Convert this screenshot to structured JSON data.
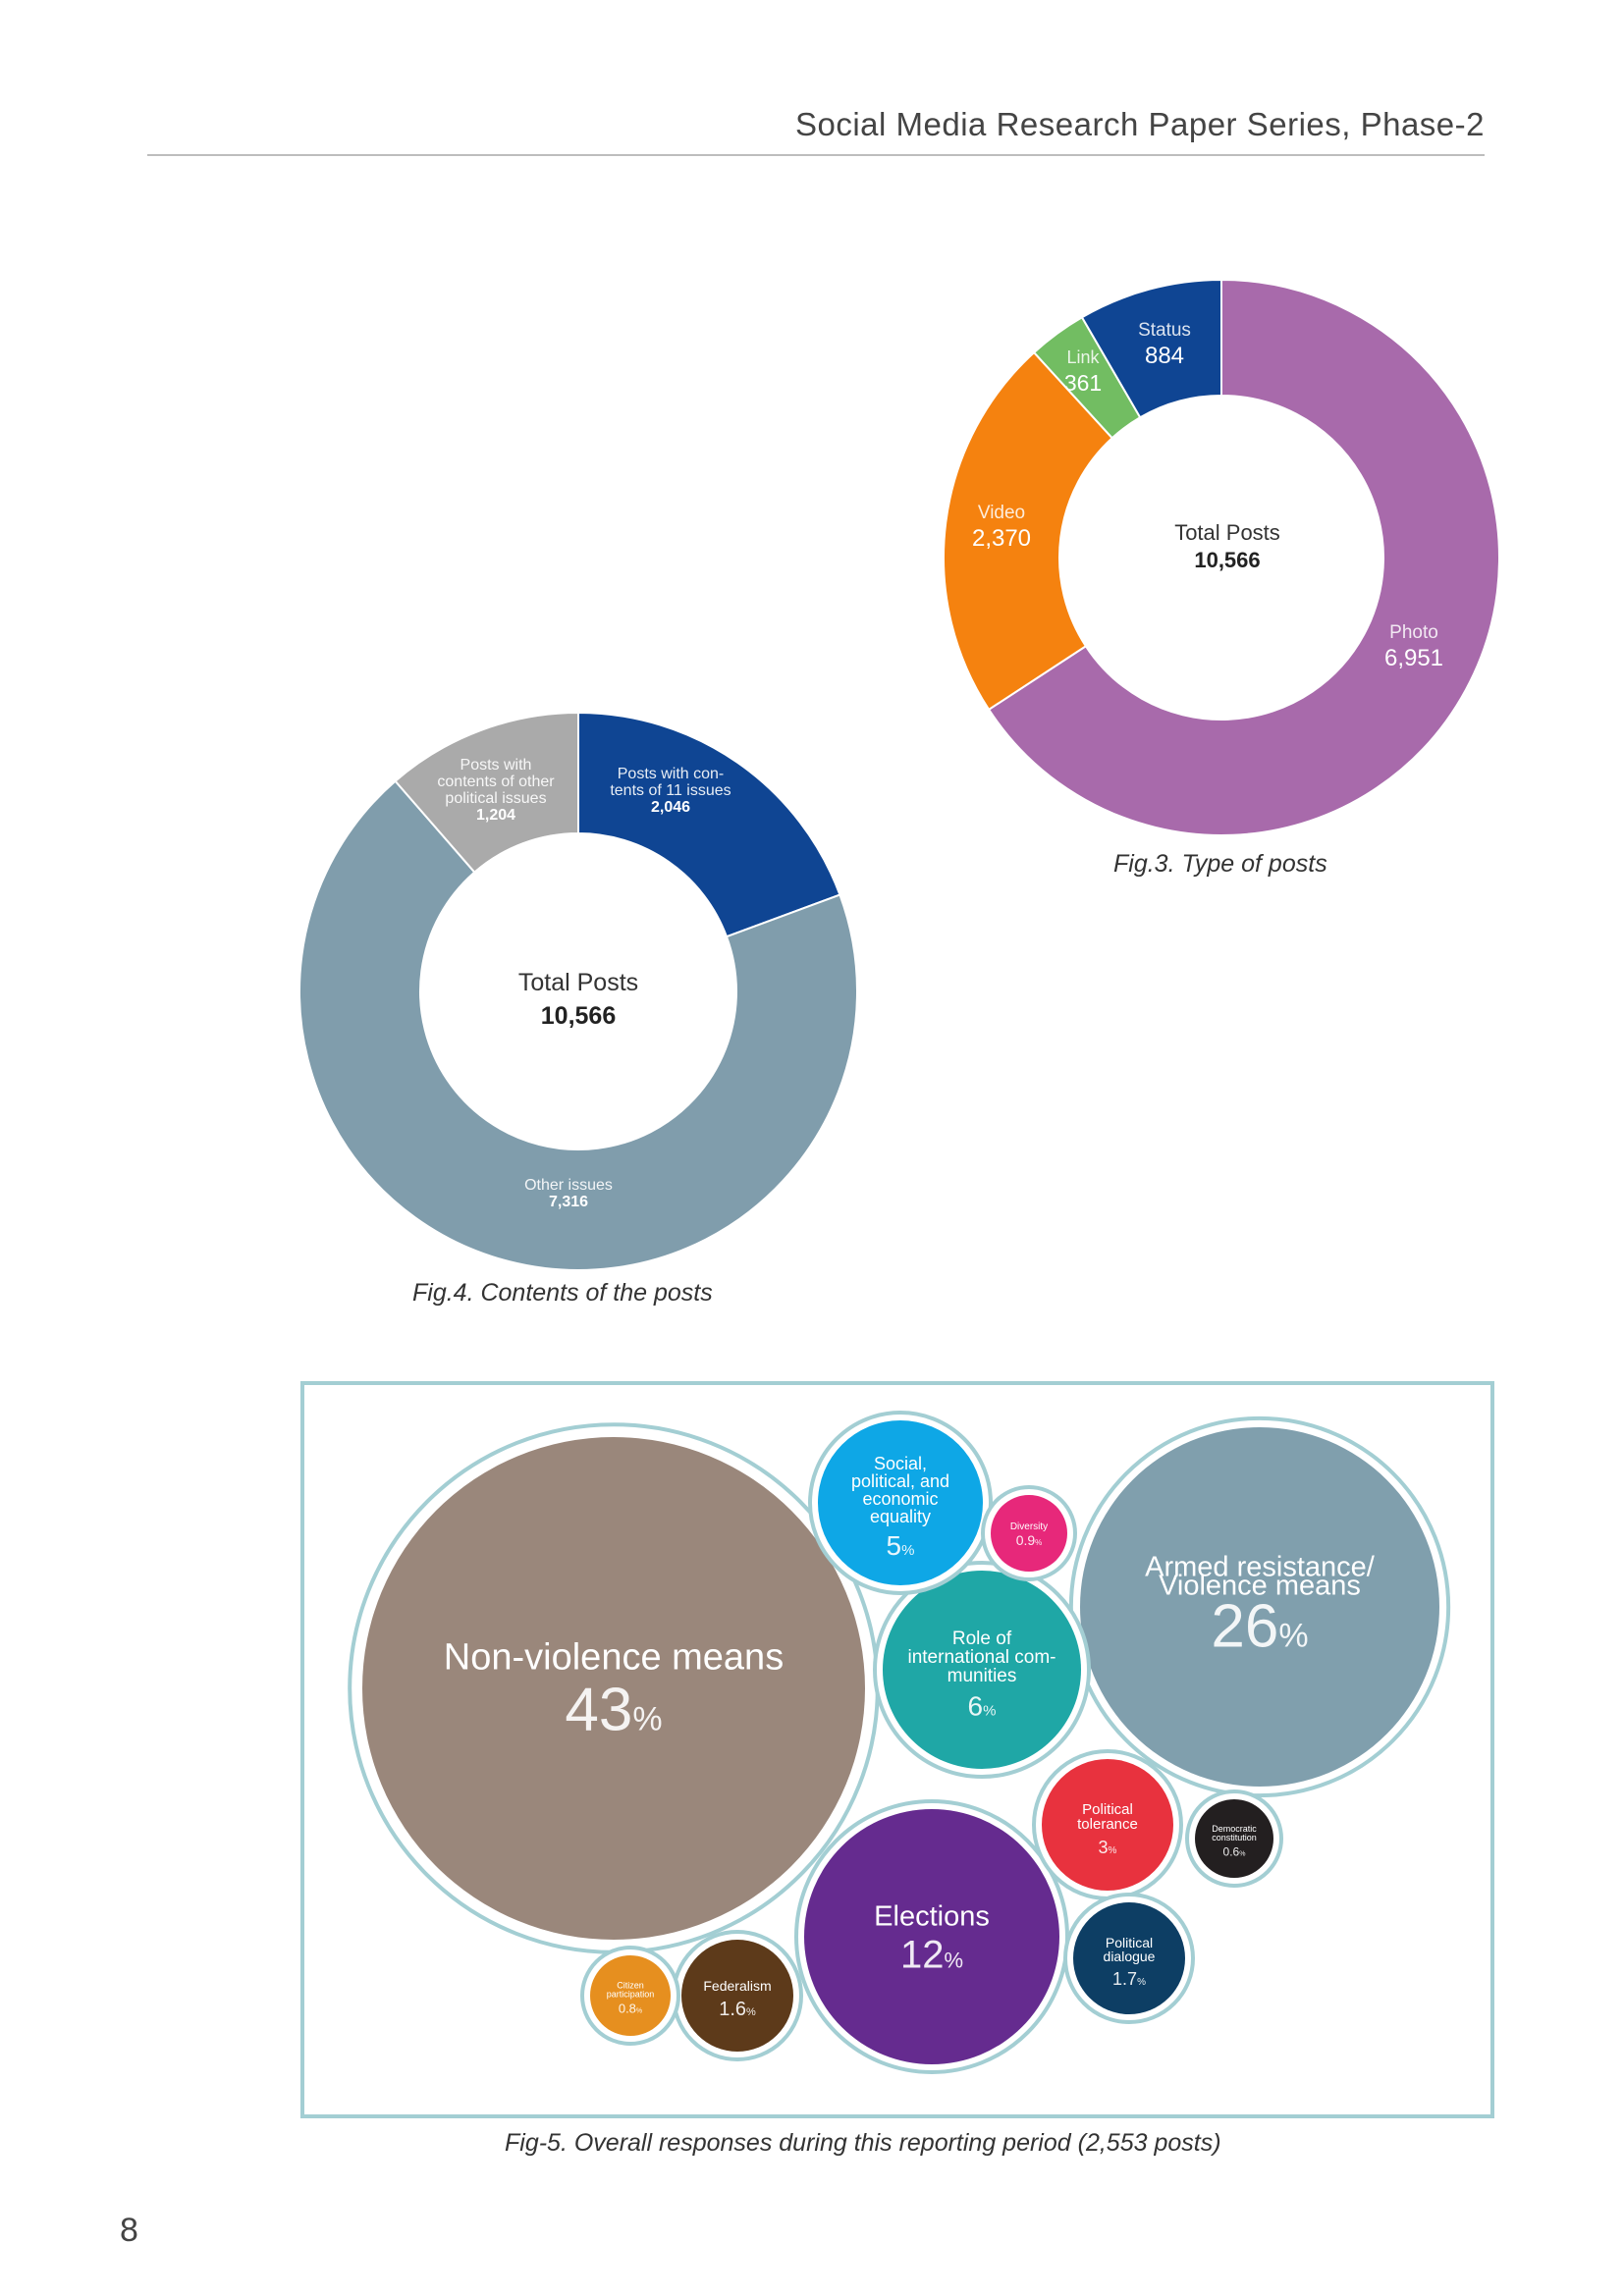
{
  "header": {
    "title": "Social Media Research Paper Series, Phase-2"
  },
  "page_number": "8",
  "captions": {
    "fig3": "Fig.3. Type of posts",
    "fig4": "Fig.4. Contents of the posts",
    "fig5": "Fig-5. Overall responses during this reporting period (2,553 posts)"
  },
  "chart_data": [
    {
      "type": "pie",
      "title": "Fig.3. Type of posts",
      "center_label": "Total Posts",
      "center_value": "10,566",
      "slices": [
        {
          "label": "Photo",
          "value": 6951,
          "value_text": "6,951",
          "color": "#a86aab"
        },
        {
          "label": "Video",
          "value": 2370,
          "value_text": "2,370",
          "color": "#f5820f"
        },
        {
          "label": "Link",
          "value": 361,
          "value_text": "361",
          "color": "#72bd62"
        },
        {
          "label": "Status",
          "value": 884,
          "value_text": "884",
          "color": "#0f4593"
        }
      ]
    },
    {
      "type": "pie",
      "title": "Fig.4. Contents of the posts",
      "center_label": "Total Posts",
      "center_value": "10,566",
      "slices": [
        {
          "label": "Posts with con-|tents of 11 issues",
          "value": 2046,
          "value_text": "2,046",
          "color": "#0f4593"
        },
        {
          "label": "Other issues",
          "value": 7316,
          "value_text": "7,316",
          "color": "#809dac"
        },
        {
          "label": "Posts with|contents of other|political issues",
          "value": 1204,
          "value_text": "1,204",
          "color": "#aaaaaa"
        }
      ]
    },
    {
      "type": "bubble",
      "title": "Fig-5. Overall responses during this reporting period (2,553 posts)",
      "bubbles": [
        {
          "label": "Non-violence means",
          "value": 43,
          "value_text": "43",
          "color": "#9a877b"
        },
        {
          "label": "Armed resistance/|Violence means",
          "value": 26,
          "value_text": "26",
          "color": "#809fad"
        },
        {
          "label": "Elections",
          "value": 12,
          "value_text": "12",
          "color": "#652b8f"
        },
        {
          "label": "Role of|international com-|munities",
          "value": 6,
          "value_text": "6",
          "color": "#1fa7a6"
        },
        {
          "label": "Social,|political, and|economic|equality",
          "value": 5,
          "value_text": "5",
          "color": "#0ea7e6"
        },
        {
          "label": "Political|tolerance",
          "value": 3,
          "value_text": "3",
          "color": "#e8323e"
        },
        {
          "label": "Political|dialogue",
          "value": 1.7,
          "value_text": "1.7",
          "color": "#0d3e64"
        },
        {
          "label": "Federalism",
          "value": 1.6,
          "value_text": "1.6",
          "color": "#5d3a1a"
        },
        {
          "label": "Diversity",
          "value": 0.9,
          "value_text": "0.9",
          "color": "#e7287a"
        },
        {
          "label": "Citizen|participation",
          "value": 0.8,
          "value_text": "0.8",
          "color": "#e68f1f"
        },
        {
          "label": "Democratic|constitution",
          "value": 0.6,
          "value_text": "0.6",
          "color": "#231f20"
        }
      ],
      "unit": "%",
      "outline_color": "#a3ced3"
    }
  ]
}
